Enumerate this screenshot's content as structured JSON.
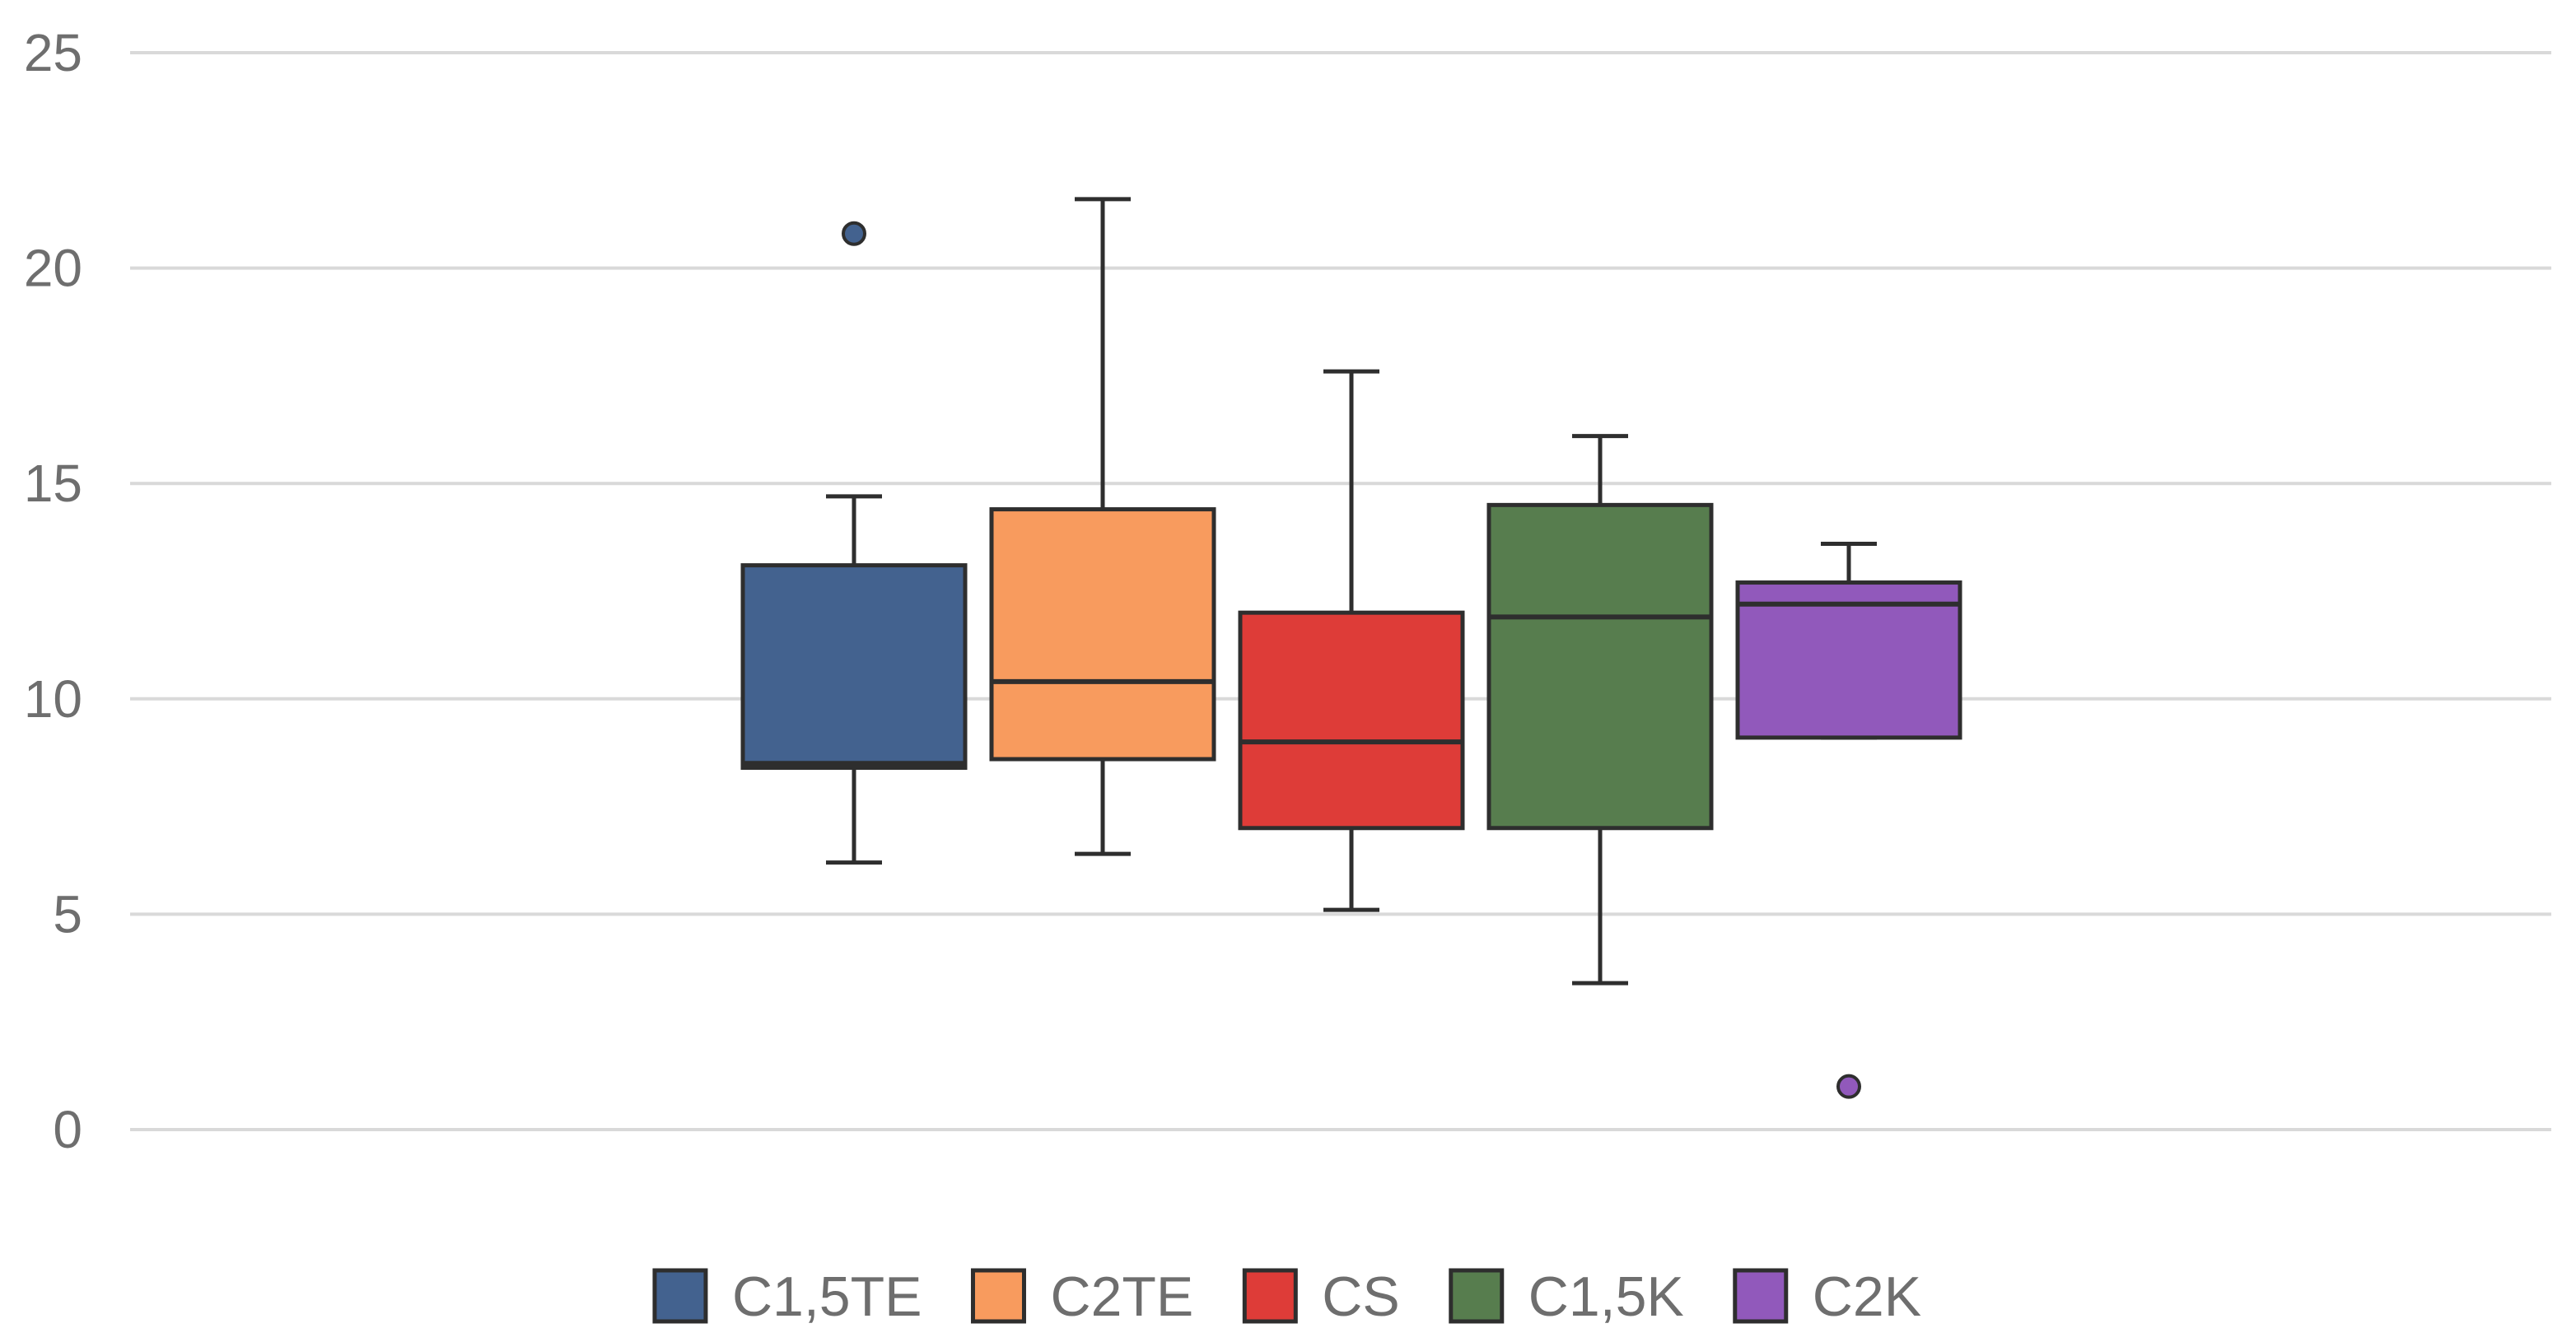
{
  "chart_data": {
    "type": "box",
    "title": "",
    "xlabel": "",
    "ylabel": "",
    "ylim": [
      0,
      25
    ],
    "yticks": [
      0,
      5,
      10,
      15,
      20,
      25
    ],
    "grid": true,
    "legend_position": "bottom",
    "series": [
      {
        "name": "C1,5TE",
        "color": "#43628f",
        "whisker_low": 6.2,
        "q1": 8.4,
        "median": 8.5,
        "q3": 13.1,
        "whisker_high": 14.7,
        "outliers": [
          20.8
        ]
      },
      {
        "name": "C2TE",
        "color": "#f89b5e",
        "whisker_low": 6.4,
        "q1": 8.6,
        "median": 10.4,
        "q3": 14.4,
        "whisker_high": 21.6,
        "outliers": []
      },
      {
        "name": "CS",
        "color": "#de3c38",
        "whisker_low": 5.1,
        "q1": 7.0,
        "median": 9.0,
        "q3": 12.0,
        "whisker_high": 17.6,
        "outliers": []
      },
      {
        "name": "C1,5K",
        "color": "#577d4e",
        "whisker_low": 3.4,
        "q1": 7.0,
        "median": 11.9,
        "q3": 14.5,
        "whisker_high": 16.1,
        "outliers": []
      },
      {
        "name": "C2K",
        "color": "#9159bb",
        "whisker_low": 9.1,
        "q1": 9.1,
        "median": 12.2,
        "q3": 12.7,
        "whisker_high": 13.6,
        "outliers": [
          1.0
        ]
      }
    ]
  }
}
